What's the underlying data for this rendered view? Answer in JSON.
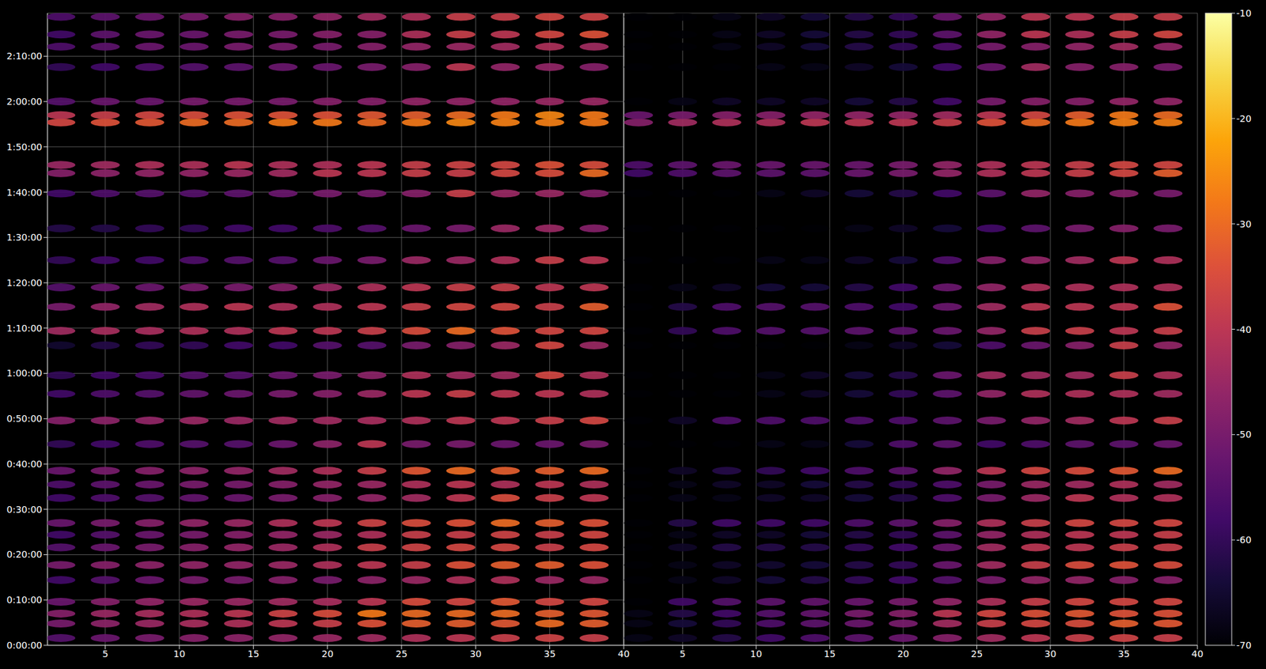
{
  "chart_data": [
    {
      "type": "heatmap",
      "xlim": [
        1.1,
        40
      ],
      "xticks": [
        5,
        10,
        15,
        20,
        25,
        30,
        35,
        40
      ],
      "ylim": [
        0,
        139.5
      ],
      "yticks": [
        {
          "value": 0,
          "label": "0:00:00"
        },
        {
          "value": 10,
          "label": "0:10:00"
        },
        {
          "value": 20,
          "label": "0:20:00"
        },
        {
          "value": 30,
          "label": "0:30:00"
        },
        {
          "value": 40,
          "label": "0:40:00"
        },
        {
          "value": 50,
          "label": "0:50:00"
        },
        {
          "value": 60,
          "label": "1:00:00"
        },
        {
          "value": 70,
          "label": "1:10:00"
        },
        {
          "value": 80,
          "label": "1:20:00"
        },
        {
          "value": 90,
          "label": "1:30:00"
        },
        {
          "value": 100,
          "label": "1:40:00"
        },
        {
          "value": 110,
          "label": "1:50:00"
        },
        {
          "value": 120,
          "label": "2:00:00"
        },
        {
          "value": 130,
          "label": "2:10:00"
        }
      ],
      "grid": true,
      "cells": {
        "x": [
          2,
          5,
          8,
          11,
          14,
          17,
          20,
          23,
          26,
          29,
          32,
          35,
          38
        ],
        "y": [
          1.6,
          4.8,
          7.0,
          9.6,
          14.4,
          17.7,
          21.6,
          24.4,
          27.0,
          32.5,
          35.5,
          38.5,
          44.4,
          49.6,
          55.5,
          59.6,
          66.2,
          69.4,
          74.7,
          79.0,
          85.0,
          92.0,
          99.7,
          104.2,
          106.0,
          115.4,
          117.0,
          120.0,
          127.6,
          132.1,
          134.8,
          138.7
        ],
        "values": [
          [
            -55,
            -52,
            -50,
            -48,
            -47,
            -46,
            -45,
            -44,
            -42,
            -40,
            -38,
            -37,
            -38
          ],
          [
            -50,
            -47,
            -45,
            -43,
            -42,
            -40,
            -38,
            -34,
            -32,
            -32,
            -33,
            -30,
            -32
          ],
          [
            -48,
            -45,
            -43,
            -42,
            -40,
            -37,
            -35,
            -28,
            -30,
            -30,
            -30,
            -32,
            -33
          ],
          [
            -52,
            -48,
            -46,
            -45,
            -45,
            -44,
            -43,
            -40,
            -35,
            -36,
            -33,
            -36,
            -36
          ],
          [
            -58,
            -55,
            -52,
            -50,
            -50,
            -48,
            -50,
            -47,
            -45,
            -42,
            -42,
            -45,
            -45
          ],
          [
            -50,
            -48,
            -47,
            -46,
            -46,
            -45,
            -42,
            -40,
            -38,
            -34,
            -32,
            -32,
            -34
          ],
          [
            -55,
            -52,
            -50,
            -48,
            -46,
            -45,
            -42,
            -38,
            -37,
            -36,
            -36,
            -38,
            -36
          ],
          [
            -58,
            -55,
            -52,
            -50,
            -48,
            -46,
            -45,
            -42,
            -38,
            -38,
            -37,
            -38,
            -36
          ],
          [
            -52,
            -50,
            -48,
            -46,
            -45,
            -42,
            -40,
            -37,
            -35,
            -34,
            -30,
            -32,
            -34
          ],
          [
            -58,
            -56,
            -55,
            -53,
            -52,
            -50,
            -48,
            -46,
            -44,
            -40,
            -35,
            -38,
            -40
          ],
          [
            -56,
            -54,
            -52,
            -50,
            -50,
            -48,
            -46,
            -45,
            -42,
            -40,
            -42,
            -40,
            -42
          ],
          [
            -52,
            -50,
            -48,
            -47,
            -46,
            -44,
            -42,
            -38,
            -33,
            -30,
            -32,
            -32,
            -30
          ],
          [
            -60,
            -58,
            -56,
            -55,
            -55,
            -52,
            -47,
            -40,
            -50,
            -50,
            -52,
            -52,
            -50
          ],
          [
            -48,
            -47,
            -46,
            -45,
            -45,
            -44,
            -44,
            -43,
            -42,
            -40,
            -40,
            -38,
            -36
          ],
          [
            -58,
            -56,
            -55,
            -53,
            -52,
            -50,
            -48,
            -45,
            -40,
            -38,
            -40,
            -40,
            -42
          ],
          [
            -60,
            -58,
            -57,
            -55,
            -55,
            -52,
            -50,
            -47,
            -42,
            -44,
            -44,
            -36,
            -42
          ],
          [
            -65,
            -62,
            -60,
            -60,
            -58,
            -58,
            -55,
            -55,
            -50,
            -48,
            -45,
            -36,
            -45
          ],
          [
            -44,
            -43,
            -43,
            -42,
            -42,
            -40,
            -40,
            -38,
            -35,
            -30,
            -34,
            -36,
            -36
          ],
          [
            -50,
            -46,
            -44,
            -42,
            -40,
            -42,
            -42,
            -40,
            -38,
            -36,
            -36,
            -38,
            -32
          ],
          [
            -55,
            -52,
            -52,
            -50,
            -50,
            -48,
            -45,
            -42,
            -40,
            -38,
            -38,
            -40,
            -40
          ],
          [
            -60,
            -58,
            -58,
            -56,
            -55,
            -55,
            -52,
            -50,
            -45,
            -45,
            -42,
            -38,
            -40
          ],
          [
            -62,
            -62,
            -60,
            -60,
            -58,
            -58,
            -56,
            -55,
            -52,
            -50,
            -45,
            -45,
            -48
          ],
          [
            -58,
            -56,
            -55,
            -55,
            -54,
            -52,
            -50,
            -50,
            -48,
            -38,
            -45,
            -45,
            -48
          ],
          [
            -48,
            -47,
            -46,
            -46,
            -45,
            -44,
            -40,
            -40,
            -38,
            -38,
            -36,
            -35,
            -30
          ],
          [
            -45,
            -44,
            -42,
            -42,
            -40,
            -42,
            -42,
            -40,
            -38,
            -37,
            -36,
            -34,
            -35
          ],
          [
            -36,
            -34,
            -33,
            -30,
            -30,
            -28,
            -28,
            -30,
            -28,
            -26,
            -27,
            -27,
            -28
          ],
          [
            -40,
            -38,
            -36,
            -35,
            -34,
            -34,
            -34,
            -33,
            -32,
            -30,
            -28,
            -26,
            -28
          ],
          [
            -55,
            -52,
            -52,
            -50,
            -50,
            -50,
            -48,
            -48,
            -46,
            -46,
            -46,
            -45,
            -45
          ],
          [
            -60,
            -58,
            -56,
            -55,
            -54,
            -52,
            -52,
            -50,
            -48,
            -40,
            -46,
            -46,
            -48
          ],
          [
            -56,
            -54,
            -52,
            -52,
            -50,
            -50,
            -50,
            -48,
            -46,
            -45,
            -44,
            -42,
            -44
          ],
          [
            -58,
            -54,
            -52,
            -52,
            -50,
            -50,
            -48,
            -48,
            -42,
            -38,
            -40,
            -36,
            -34
          ],
          [
            -56,
            -54,
            -52,
            -50,
            -48,
            -48,
            -46,
            -44,
            -42,
            -38,
            -38,
            -36,
            -37
          ]
        ]
      }
    },
    {
      "type": "heatmap",
      "xlim": [
        1,
        40
      ],
      "xticks": [
        5,
        10,
        15,
        20,
        25,
        30,
        35,
        40
      ],
      "ylim": [
        0,
        139.5
      ],
      "yticks": [
        0,
        10,
        20,
        30,
        40,
        50,
        60,
        70,
        80,
        90,
        100,
        110,
        120,
        130
      ],
      "tick_labels": "x",
      "grid": true,
      "cells": {
        "x": [
          2,
          5,
          8,
          11,
          14,
          17,
          20,
          23,
          26,
          29,
          32,
          35,
          38
        ],
        "y": [
          1.6,
          4.8,
          7.0,
          9.6,
          14.4,
          17.7,
          21.6,
          24.4,
          27.0,
          32.5,
          35.5,
          38.5,
          44.4,
          49.6,
          55.5,
          59.6,
          66.2,
          69.4,
          74.7,
          79.0,
          85.0,
          92.0,
          99.7,
          104.2,
          106.0,
          115.4,
          117.0,
          120.0,
          127.6,
          132.1,
          134.8,
          138.7
        ],
        "values": [
          [
            -68,
            -66,
            -62,
            -58,
            -56,
            -54,
            -52,
            -48,
            -44,
            -40,
            -38,
            -37,
            -38
          ],
          [
            -68,
            -64,
            -60,
            -56,
            -54,
            -52,
            -50,
            -44,
            -38,
            -36,
            -35,
            -32,
            -33
          ],
          [
            -68,
            -62,
            -58,
            -55,
            -53,
            -50,
            -48,
            -40,
            -36,
            -34,
            -33,
            -34,
            -34
          ],
          [
            -70,
            -58,
            -55,
            -54,
            -53,
            -52,
            -50,
            -46,
            -42,
            -38,
            -36,
            -36,
            -36
          ],
          [
            -70,
            -68,
            -66,
            -64,
            -62,
            -60,
            -58,
            -55,
            -50,
            -46,
            -46,
            -48,
            -48
          ],
          [
            -70,
            -68,
            -66,
            -65,
            -64,
            -62,
            -60,
            -52,
            -44,
            -38,
            -35,
            -34,
            -35
          ],
          [
            -70,
            -66,
            -62,
            -62,
            -62,
            -60,
            -58,
            -52,
            -44,
            -40,
            -40,
            -38,
            -38
          ],
          [
            -70,
            -68,
            -66,
            -66,
            -64,
            -62,
            -60,
            -54,
            -46,
            -42,
            -40,
            -40,
            -38
          ],
          [
            -70,
            -62,
            -58,
            -58,
            -58,
            -56,
            -54,
            -48,
            -42,
            -38,
            -36,
            -36,
            -36
          ],
          [
            -70,
            -68,
            -68,
            -66,
            -66,
            -64,
            -62,
            -56,
            -50,
            -45,
            -40,
            -42,
            -42
          ],
          [
            -70,
            -68,
            -66,
            -66,
            -64,
            -62,
            -60,
            -56,
            -50,
            -45,
            -44,
            -42,
            -44
          ],
          [
            -70,
            -66,
            -62,
            -60,
            -58,
            -56,
            -54,
            -46,
            -40,
            -36,
            -35,
            -33,
            -30
          ],
          [
            -70,
            -70,
            -70,
            -68,
            -68,
            -64,
            -56,
            -54,
            -58,
            -56,
            -54,
            -54,
            -52
          ],
          [
            -70,
            -66,
            -56,
            -56,
            -56,
            -56,
            -56,
            -54,
            -50,
            -46,
            -44,
            -40,
            -38
          ],
          [
            -70,
            -70,
            -70,
            -68,
            -66,
            -64,
            -60,
            -54,
            -46,
            -42,
            -42,
            -42,
            -44
          ],
          [
            -70,
            -70,
            -70,
            -68,
            -66,
            -64,
            -62,
            -52,
            -44,
            -44,
            -44,
            -38,
            -42
          ],
          [
            -70,
            -70,
            -70,
            -70,
            -70,
            -68,
            -66,
            -64,
            -56,
            -52,
            -48,
            -38,
            -46
          ],
          [
            -70,
            -60,
            -56,
            -55,
            -55,
            -54,
            -54,
            -52,
            -46,
            -38,
            -38,
            -40,
            -38
          ],
          [
            -70,
            -62,
            -56,
            -55,
            -55,
            -56,
            -58,
            -52,
            -44,
            -40,
            -40,
            -40,
            -34
          ],
          [
            -70,
            -68,
            -66,
            -64,
            -64,
            -62,
            -58,
            -52,
            -46,
            -42,
            -42,
            -42,
            -42
          ],
          [
            -70,
            -70,
            -70,
            -68,
            -68,
            -66,
            -64,
            -56,
            -48,
            -46,
            -44,
            -40,
            -42
          ],
          [
            -70,
            -70,
            -70,
            -70,
            -70,
            -68,
            -66,
            -64,
            -58,
            -54,
            -50,
            -48,
            -50
          ],
          [
            -70,
            -70,
            -70,
            -68,
            -66,
            -64,
            -62,
            -58,
            -54,
            -46,
            -48,
            -48,
            -50
          ],
          [
            -58,
            -56,
            -54,
            -54,
            -54,
            -52,
            -50,
            -46,
            -42,
            -40,
            -38,
            -36,
            -32
          ],
          [
            -56,
            -54,
            -52,
            -52,
            -52,
            -52,
            -50,
            -46,
            -42,
            -40,
            -38,
            -36,
            -36
          ],
          [
            -48,
            -44,
            -42,
            -42,
            -40,
            -40,
            -40,
            -38,
            -34,
            -30,
            -28,
            -27,
            -27
          ],
          [
            -52,
            -50,
            -48,
            -48,
            -46,
            -46,
            -46,
            -44,
            -40,
            -36,
            -32,
            -28,
            -30
          ],
          [
            -70,
            -68,
            -66,
            -66,
            -66,
            -64,
            -62,
            -58,
            -50,
            -48,
            -48,
            -46,
            -46
          ],
          [
            -70,
            -70,
            -70,
            -68,
            -68,
            -66,
            -64,
            -58,
            -52,
            -44,
            -48,
            -48,
            -50
          ],
          [
            -70,
            -70,
            -68,
            -66,
            -64,
            -62,
            -60,
            -56,
            -50,
            -48,
            -46,
            -44,
            -46
          ],
          [
            -70,
            -70,
            -68,
            -66,
            -64,
            -62,
            -60,
            -54,
            -46,
            -40,
            -42,
            -38,
            -36
          ],
          [
            -70,
            -70,
            -68,
            -66,
            -64,
            -62,
            -60,
            -52,
            -46,
            -40,
            -40,
            -38,
            -38
          ]
        ]
      },
      "colorbar": {
        "range": [
          -70,
          -10
        ],
        "ticks": [
          -70,
          -60,
          -50,
          -40,
          -30,
          -20,
          -10
        ]
      }
    }
  ]
}
